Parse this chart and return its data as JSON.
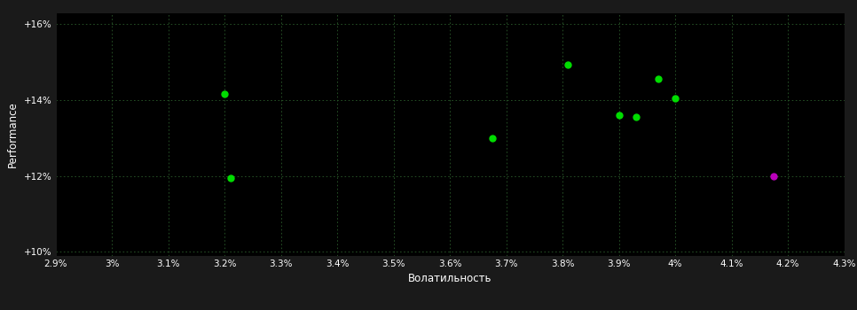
{
  "background_color": "#1a1a1a",
  "plot_bg_color": "#000000",
  "grid_color": "#2a5a2a",
  "text_color": "#ffffff",
  "xlabel": "Волатильность",
  "ylabel": "Performance",
  "xlim": [
    0.029,
    0.043
  ],
  "ylim": [
    0.099,
    0.163
  ],
  "xticks": [
    0.029,
    0.03,
    0.031,
    0.032,
    0.033,
    0.034,
    0.035,
    0.036,
    0.037,
    0.038,
    0.039,
    0.04,
    0.041,
    0.042,
    0.043
  ],
  "yticks": [
    0.1,
    0.12,
    0.14,
    0.16
  ],
  "ytick_labels": [
    "+10%",
    "+12%",
    "+14%",
    "+16%"
  ],
  "xtick_labels": [
    "2.9%",
    "3%",
    "3.1%",
    "3.2%",
    "3.3%",
    "3.4%",
    "3.5%",
    "3.6%",
    "3.7%",
    "3.8%",
    "3.9%",
    "4%",
    "4.1%",
    "4.2%",
    "4.3%"
  ],
  "points_green": [
    [
      0.032,
      0.1415
    ],
    [
      0.0321,
      0.1195
    ],
    [
      0.03675,
      0.13
    ],
    [
      0.0381,
      0.1492
    ],
    [
      0.039,
      0.136
    ],
    [
      0.0393,
      0.1355
    ],
    [
      0.0397,
      0.1455
    ],
    [
      0.04,
      0.1405
    ]
  ],
  "points_purple": [
    [
      0.04175,
      0.1198
    ]
  ],
  "marker_size": 25,
  "font_size_tick": 7.5,
  "font_size_label": 8.5
}
